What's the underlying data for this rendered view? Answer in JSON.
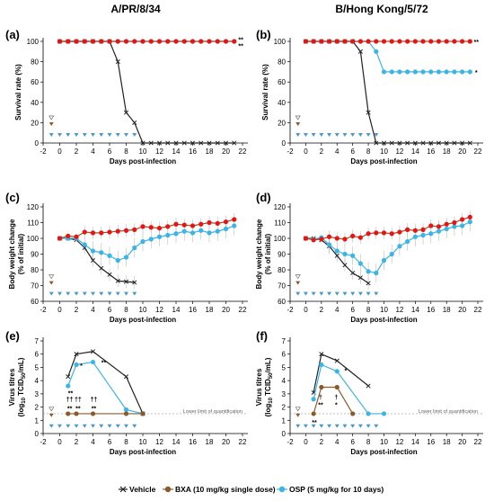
{
  "titles": {
    "left": "A/PR/8/34",
    "right": "B/Hong Kong/5/72"
  },
  "colors": {
    "vehicle": "#222222",
    "bxa": "#8B5A2B",
    "osp": "#3BB4E6",
    "red": "#EE1111",
    "tri": "#4A98C8",
    "llq": "#999999"
  },
  "legend": {
    "vehicle": "Vehicle",
    "bxa": "BXA (10 mg/kg single dose)",
    "osp": "OSP (5 mg/kg for 10 days)"
  },
  "chart_data": [
    {
      "panel": "(a)",
      "type": "line",
      "xlabel": "Days post-infection",
      "ylabel": "Survival rate (%)",
      "xlim": [
        -2,
        22
      ],
      "ylim": [
        0,
        100
      ],
      "xticks": [
        -2,
        0,
        2,
        4,
        6,
        8,
        10,
        12,
        14,
        16,
        18,
        20,
        22
      ],
      "yticks": [
        0,
        20,
        40,
        60,
        80,
        100
      ],
      "series": [
        {
          "name": "Vehicle",
          "x": [
            0,
            1,
            2,
            3,
            4,
            5,
            6,
            7,
            8,
            9,
            10,
            11,
            12,
            13,
            14,
            15,
            16,
            17,
            18,
            19,
            20,
            21
          ],
          "y": [
            100,
            100,
            100,
            100,
            100,
            100,
            100,
            80,
            30,
            20,
            0,
            0,
            0,
            0,
            0,
            0,
            0,
            0,
            0,
            0,
            0,
            0
          ]
        },
        {
          "name": "BXA",
          "x": [
            0,
            1,
            2,
            3,
            4,
            5,
            6,
            7,
            8,
            9,
            10,
            11,
            12,
            13,
            14,
            15,
            16,
            17,
            18,
            19,
            20,
            21
          ],
          "y": [
            100,
            100,
            100,
            100,
            100,
            100,
            100,
            100,
            100,
            100,
            100,
            100,
            100,
            100,
            100,
            100,
            100,
            100,
            100,
            100,
            100,
            100
          ]
        },
        {
          "name": "OSP",
          "x": [
            0,
            1,
            2,
            3,
            4,
            5,
            6,
            7,
            8,
            9,
            10,
            11,
            12,
            13,
            14,
            15,
            16,
            17,
            18,
            19,
            20,
            21
          ],
          "y": [
            100,
            100,
            100,
            100,
            100,
            100,
            100,
            100,
            100,
            100,
            100,
            100,
            100,
            100,
            100,
            100,
            100,
            100,
            100,
            100,
            100,
            100
          ]
        }
      ],
      "annotations": [
        {
          "text": "**",
          "x": 21.8,
          "y": 102
        },
        {
          "text": "**",
          "x": 21.8,
          "y": 96
        }
      ]
    },
    {
      "panel": "(b)",
      "type": "line",
      "xlabel": "Days post-infection",
      "ylabel": "Survival rate (%)",
      "xlim": [
        -2,
        22
      ],
      "ylim": [
        0,
        100
      ],
      "xticks": [
        -2,
        0,
        2,
        4,
        6,
        8,
        10,
        12,
        14,
        16,
        18,
        20,
        22
      ],
      "yticks": [
        0,
        20,
        40,
        60,
        80,
        100
      ],
      "series": [
        {
          "name": "Vehicle",
          "x": [
            0,
            1,
            2,
            3,
            4,
            5,
            6,
            7,
            8,
            9,
            10,
            11,
            12,
            13,
            14,
            15,
            16,
            17,
            18,
            19,
            20,
            21
          ],
          "y": [
            100,
            100,
            100,
            100,
            100,
            100,
            100,
            90,
            30,
            0,
            0,
            0,
            0,
            0,
            0,
            0,
            0,
            0,
            0,
            0,
            0,
            0
          ]
        },
        {
          "name": "BXA",
          "x": [
            0,
            1,
            2,
            3,
            4,
            5,
            6,
            7,
            8,
            9,
            10,
            11,
            12,
            13,
            14,
            15,
            16,
            17,
            18,
            19,
            20,
            21
          ],
          "y": [
            100,
            100,
            100,
            100,
            100,
            100,
            100,
            100,
            100,
            100,
            100,
            100,
            100,
            100,
            100,
            100,
            100,
            100,
            100,
            100,
            100,
            100
          ]
        },
        {
          "name": "OSP",
          "x": [
            0,
            1,
            2,
            3,
            4,
            5,
            6,
            7,
            8,
            9,
            10,
            11,
            12,
            13,
            14,
            15,
            16,
            17,
            18,
            19,
            20,
            21
          ],
          "y": [
            100,
            100,
            100,
            100,
            100,
            100,
            100,
            100,
            100,
            90,
            70,
            70,
            70,
            70,
            70,
            70,
            70,
            70,
            70,
            70,
            70,
            70
          ]
        }
      ],
      "annotations": [
        {
          "text": "**",
          "x": 21.8,
          "y": 100
        },
        {
          "text": "*",
          "x": 21.8,
          "y": 70
        }
      ]
    },
    {
      "panel": "(c)",
      "type": "line",
      "xlabel": "Days post-infection",
      "ylabel": "Body weight change (% of initial)",
      "xlim": [
        -2,
        22
      ],
      "ylim": [
        60,
        120
      ],
      "xticks": [
        -2,
        0,
        2,
        4,
        6,
        8,
        10,
        12,
        14,
        16,
        18,
        20,
        22
      ],
      "yticks": [
        60,
        70,
        80,
        90,
        100,
        110,
        120
      ],
      "series": [
        {
          "name": "Vehicle",
          "x": [
            0,
            1,
            2,
            3,
            4,
            5,
            6,
            7,
            8,
            9
          ],
          "y": [
            100,
            100,
            99,
            94,
            86,
            81,
            77,
            73,
            72.5,
            72
          ]
        },
        {
          "name": "BXA",
          "x": [
            0,
            1,
            2,
            3,
            4,
            5,
            6,
            7,
            8,
            9,
            10,
            11,
            12,
            13,
            14,
            15,
            16,
            17,
            18,
            19,
            20,
            21
          ],
          "y": [
            100,
            101.5,
            101,
            104,
            103.5,
            103.5,
            104,
            104.5,
            105,
            105.5,
            107.5,
            107,
            106.5,
            107.5,
            109,
            108.5,
            108,
            109,
            110,
            109.5,
            110.5,
            112
          ]
        },
        {
          "name": "OSP",
          "x": [
            0,
            1,
            2,
            3,
            4,
            5,
            6,
            7,
            8,
            9,
            10,
            11,
            12,
            13,
            14,
            15,
            16,
            17,
            18,
            19,
            20,
            21
          ],
          "y": [
            100,
            100,
            100,
            96,
            92,
            91,
            89,
            86,
            88,
            94,
            98,
            99.5,
            101,
            102,
            103,
            104.5,
            103.5,
            105,
            103.5,
            104.5,
            106,
            108
          ]
        }
      ]
    },
    {
      "panel": "(d)",
      "type": "line",
      "xlabel": "Days post-infection",
      "ylabel": "Body weight change (% of initial)",
      "xlim": [
        -2,
        22
      ],
      "ylim": [
        60,
        120
      ],
      "xticks": [
        -2,
        0,
        2,
        4,
        6,
        8,
        10,
        12,
        14,
        16,
        18,
        20,
        22
      ],
      "yticks": [
        60,
        70,
        80,
        90,
        100,
        110,
        120
      ],
      "series": [
        {
          "name": "Vehicle",
          "x": [
            0,
            1,
            2,
            3,
            4,
            5,
            6,
            7,
            8
          ],
          "y": [
            100,
            100,
            99,
            95,
            89,
            83,
            78,
            75,
            71.5
          ]
        },
        {
          "name": "BXA",
          "x": [
            0,
            1,
            2,
            3,
            4,
            5,
            6,
            7,
            8,
            9,
            10,
            11,
            12,
            13,
            14,
            15,
            16,
            17,
            18,
            19,
            20,
            21
          ],
          "y": [
            100,
            99,
            99.5,
            101,
            100,
            99.5,
            101.5,
            100.5,
            103,
            103.5,
            103.5,
            103,
            104,
            105.5,
            105,
            105.5,
            108,
            107.5,
            109,
            110,
            112,
            113.5
          ]
        },
        {
          "name": "OSP",
          "x": [
            0,
            1,
            2,
            3,
            4,
            5,
            6,
            7,
            8,
            9,
            10,
            11,
            12,
            13,
            14,
            15,
            16,
            17,
            18,
            19,
            20,
            21
          ],
          "y": [
            100,
            99.5,
            100.5,
            96,
            92,
            90,
            89,
            84,
            79,
            78,
            86,
            90,
            95,
            98,
            101,
            102,
            103,
            104.5,
            106,
            107.5,
            108,
            110.5
          ]
        }
      ]
    },
    {
      "panel": "(e)",
      "type": "line",
      "xlabel": "Days post-infection",
      "ylabel": "Virus titres (log10 TCID50/mL)",
      "xlim": [
        -2,
        22
      ],
      "ylim": [
        0,
        7
      ],
      "xticks": [
        -2,
        0,
        2,
        4,
        6,
        8,
        10,
        12,
        14,
        16,
        18,
        20,
        22
      ],
      "yticks": [
        0,
        1,
        2,
        3,
        4,
        5,
        6,
        7
      ],
      "llq_label": "Lower limit of quantification",
      "llq": 1.5,
      "series": [
        {
          "name": "Vehicle",
          "x": [
            1,
            2,
            4,
            8,
            10
          ],
          "y": [
            4.3,
            6.0,
            6.2,
            4.3,
            1.5
          ]
        },
        {
          "name": "BXA",
          "x": [
            1,
            2,
            4,
            8,
            10
          ],
          "y": [
            1.5,
            1.5,
            1.5,
            1.5,
            1.5
          ]
        },
        {
          "name": "OSP",
          "x": [
            1,
            2,
            4,
            8,
            10
          ],
          "y": [
            3.6,
            5.2,
            5.4,
            1.8,
            1.5
          ]
        }
      ],
      "annotations": [
        {
          "text": "**",
          "x": 1.3,
          "y": 3.1
        },
        {
          "text": "**",
          "x": 5.3,
          "y": 5.4
        },
        {
          "text": "*",
          "x": 2.6,
          "y": 5.15
        },
        {
          "text": "††",
          "x": 1.2,
          "y": 2.6
        },
        {
          "text": "**",
          "x": 1.2,
          "y": 1.95
        },
        {
          "text": "††",
          "x": 2.2,
          "y": 2.6
        },
        {
          "text": "**",
          "x": 2.2,
          "y": 1.95
        },
        {
          "text": "††",
          "x": 4.1,
          "y": 2.6
        },
        {
          "text": "**",
          "x": 4.1,
          "y": 1.95
        }
      ]
    },
    {
      "panel": "(f)",
      "type": "line",
      "xlabel": "Days post-infection",
      "ylabel": "Virus titres (log10 TCID50/mL)",
      "xlim": [
        -2,
        22
      ],
      "ylim": [
        0,
        7
      ],
      "xticks": [
        -2,
        0,
        2,
        4,
        6,
        8,
        10,
        12,
        14,
        16,
        18,
        20,
        22
      ],
      "yticks": [
        0,
        1,
        2,
        3,
        4,
        5,
        6,
        7
      ],
      "llq_label": "Lower limit of quantification",
      "llq": 1.5,
      "series": [
        {
          "name": "Vehicle",
          "x": [
            1,
            2,
            4,
            8
          ],
          "y": [
            3.1,
            6.0,
            5.5,
            3.6
          ]
        },
        {
          "name": "BXA",
          "x": [
            1,
            2,
            4,
            6
          ],
          "y": [
            1.5,
            3.5,
            3.5,
            1.5
          ]
        },
        {
          "name": "OSP",
          "x": [
            1,
            2,
            4,
            8,
            10
          ],
          "y": [
            2.6,
            5.2,
            4.7,
            1.5,
            1.5
          ]
        }
      ],
      "annotations": [
        {
          "text": "*",
          "x": 5.1,
          "y": 4.8
        },
        {
          "text": "†",
          "x": 1.9,
          "y": 2.8
        },
        {
          "text": "**",
          "x": 1.9,
          "y": 2.2
        },
        {
          "text": "†",
          "x": 3.9,
          "y": 2.8
        },
        {
          "text": "*",
          "x": 3.9,
          "y": 2.2
        },
        {
          "text": "**",
          "x": 1.1,
          "y": 0.9
        }
      ]
    }
  ]
}
